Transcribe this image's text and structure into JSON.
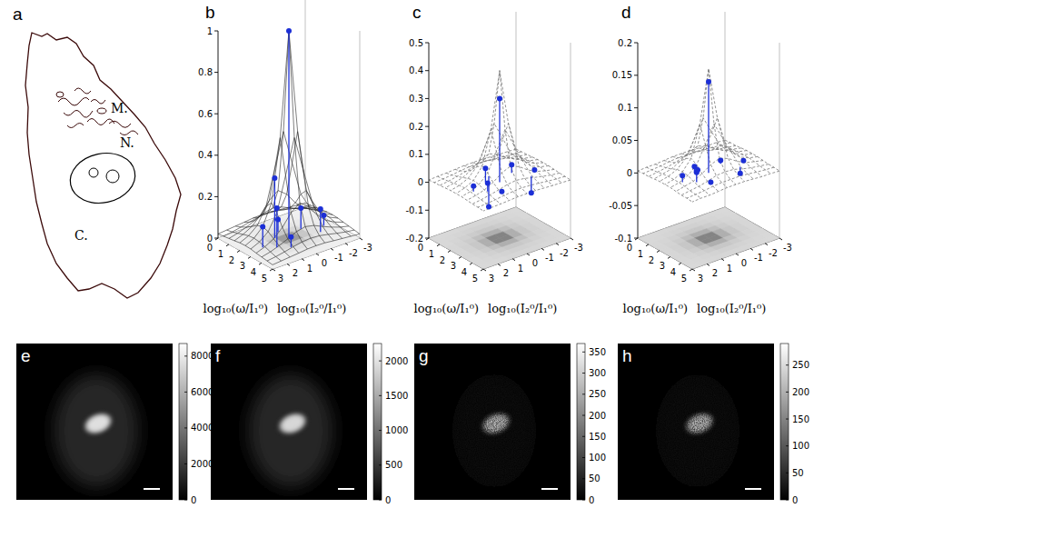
{
  "chart_data": [
    {
      "panel": "b",
      "type": "surface3d",
      "x_label": "log₁₀(ω/I₁⁰)",
      "y_label": "log₁₀(I₂⁰/I₁⁰)",
      "xlim": [
        0,
        5
      ],
      "xticks": [
        0,
        1,
        2,
        3,
        4,
        5
      ],
      "ylim": [
        -3,
        3
      ],
      "yticks": [
        3,
        2,
        1,
        0,
        -1,
        -2,
        -3
      ],
      "zlim": [
        0,
        1
      ],
      "zticks": [
        0,
        0.2,
        0.4,
        0.6,
        0.8,
        1
      ],
      "color": "#1c2fd6",
      "line_style": "solid",
      "surface": {
        "x": [
          0,
          0.5,
          1,
          1.5,
          2,
          2.5,
          3,
          3.5,
          4,
          4.5,
          5
        ],
        "y": [
          -3,
          -2.4,
          -1.8,
          -1.2,
          -0.6,
          0,
          0.6,
          1.2,
          1.8,
          2.4,
          3
        ],
        "z": [
          [
            0.02,
            0.024,
            0.028,
            0.032,
            0.037,
            0.038,
            0.037,
            0.032,
            0.028,
            0.024,
            0.02
          ],
          [
            0.024,
            0.03,
            0.038,
            0.048,
            0.056,
            0.059,
            0.056,
            0.048,
            0.038,
            0.03,
            0.024
          ],
          [
            0.028,
            0.038,
            0.053,
            0.071,
            0.091,
            0.1,
            0.091,
            0.071,
            0.053,
            0.038,
            0.028
          ],
          [
            0.032,
            0.048,
            0.071,
            0.111,
            0.167,
            0.2,
            0.167,
            0.111,
            0.071,
            0.048,
            0.032
          ],
          [
            0.037,
            0.056,
            0.091,
            0.167,
            0.333,
            0.5,
            0.333,
            0.167,
            0.091,
            0.056,
            0.037
          ],
          [
            0.038,
            0.059,
            0.1,
            0.2,
            0.5,
            1,
            0.5,
            0.2,
            0.1,
            0.059,
            0.038
          ],
          [
            0.037,
            0.056,
            0.091,
            0.167,
            0.333,
            0.5,
            0.333,
            0.167,
            0.091,
            0.056,
            0.037
          ],
          [
            0.032,
            0.048,
            0.071,
            0.111,
            0.167,
            0.2,
            0.167,
            0.111,
            0.071,
            0.048,
            0.032
          ],
          [
            0.028,
            0.038,
            0.053,
            0.071,
            0.091,
            0.1,
            0.091,
            0.071,
            0.053,
            0.038,
            0.028
          ],
          [
            0.024,
            0.03,
            0.038,
            0.048,
            0.056,
            0.059,
            0.056,
            0.048,
            0.038,
            0.03,
            0.024
          ],
          [
            0.02,
            0.024,
            0.028,
            0.032,
            0.037,
            0.038,
            0.037,
            0.032,
            0.028,
            0.024,
            0.02
          ]
        ]
      },
      "points": {
        "x": [
          2.5,
          2,
          3,
          2,
          3,
          1.5,
          3.5,
          2.5,
          2.5
        ],
        "y": [
          0,
          0.6,
          1.2,
          -1.2,
          -1.8,
          0,
          0.6,
          1.8,
          -2.4
        ],
        "values": [
          1,
          0.29,
          0.19,
          0.1,
          0.11,
          0.06,
          0.05,
          0.1,
          0.05
        ]
      }
    },
    {
      "panel": "c",
      "type": "surface3d",
      "x_label": "log₁₀(ω/I₁⁰)",
      "y_label": "log₁₀(I₂⁰/I₁⁰)",
      "xlim": [
        0,
        5
      ],
      "xticks": [
        0,
        1,
        2,
        3,
        4,
        5
      ],
      "ylim": [
        -3,
        3
      ],
      "yticks": [
        3,
        2,
        1,
        0,
        -1,
        -2,
        -3
      ],
      "zlim": [
        -0.2,
        0.5
      ],
      "zticks": [
        -0.2,
        -0.1,
        0,
        0.1,
        0.2,
        0.3,
        0.4,
        0.5
      ],
      "color": "#1c2fd6",
      "line_style": "dashed",
      "surface": {
        "x": [
          0,
          0.5,
          1,
          1.5,
          2,
          2.5,
          3,
          3.5,
          4,
          4.5,
          5
        ],
        "y": [
          -3,
          -2.4,
          -1.8,
          -1.2,
          -0.6,
          0,
          0.6,
          1.2,
          1.8,
          2.4,
          3
        ],
        "z": [
          [
            0.008,
            0.01,
            0.011,
            0.013,
            0.015,
            0.015,
            0.015,
            0.013,
            0.011,
            0.01,
            0.008
          ],
          [
            0.01,
            0.012,
            0.015,
            0.019,
            0.022,
            0.024,
            0.022,
            0.019,
            0.015,
            0.012,
            0.01
          ],
          [
            0.011,
            0.015,
            0.021,
            0.028,
            0.036,
            0.04,
            0.036,
            0.028,
            0.021,
            0.015,
            0.011
          ],
          [
            0.013,
            0.019,
            0.028,
            0.044,
            0.067,
            0.08,
            0.067,
            0.044,
            0.028,
            0.019,
            0.013
          ],
          [
            0.015,
            0.022,
            0.036,
            0.067,
            0.133,
            0.2,
            0.133,
            0.067,
            0.036,
            0.022,
            0.015
          ],
          [
            0.015,
            0.024,
            0.04,
            0.08,
            0.2,
            0.4,
            0.2,
            0.08,
            0.04,
            0.024,
            0.015
          ],
          [
            0.015,
            0.022,
            0.036,
            0.067,
            0.133,
            0.2,
            0.133,
            0.067,
            0.036,
            0.022,
            0.015
          ],
          [
            0.013,
            0.019,
            0.028,
            0.044,
            0.067,
            0.08,
            0.067,
            0.044,
            0.028,
            0.019,
            0.013
          ],
          [
            0.011,
            0.015,
            0.021,
            0.028,
            0.036,
            0.04,
            0.036,
            0.028,
            0.021,
            0.015,
            0.011
          ],
          [
            0.01,
            0.012,
            0.015,
            0.019,
            0.022,
            0.024,
            0.022,
            0.019,
            0.015,
            0.012,
            0.01
          ],
          [
            0.008,
            0.01,
            0.011,
            0.013,
            0.015,
            0.015,
            0.015,
            0.013,
            0.011,
            0.01,
            0.008
          ]
        ]
      },
      "points": {
        "x": [
          2.5,
          2,
          3,
          2,
          3,
          1.5,
          3.5,
          2.5,
          2.5
        ],
        "y": [
          0,
          0.6,
          1.2,
          -1.2,
          -1.8,
          0,
          0.6,
          1.8,
          -2.4
        ],
        "values": [
          0.3,
          0.05,
          0.03,
          0.03,
          -0.06,
          -0.11,
          0,
          0.02,
          0
        ]
      }
    },
    {
      "panel": "d",
      "type": "surface3d",
      "x_label": "log₁₀(ω/I₁⁰)",
      "y_label": "log₁₀(I₂⁰/I₁⁰)",
      "xlim": [
        0,
        5
      ],
      "xticks": [
        0,
        1,
        2,
        3,
        4,
        5
      ],
      "ylim": [
        -3,
        3
      ],
      "yticks": [
        3,
        2,
        1,
        0,
        -1,
        -2,
        -3
      ],
      "zlim": [
        -0.1,
        0.2
      ],
      "zticks": [
        -0.1,
        -0.05,
        0,
        0.05,
        0.1,
        0.15,
        0.2
      ],
      "color": "#1c2fd6",
      "line_style": "dashed",
      "surface": {
        "x": [
          0,
          0.5,
          1,
          1.5,
          2,
          2.5,
          3,
          3.5,
          4,
          4.5,
          5
        ],
        "y": [
          -3,
          -2.4,
          -1.8,
          -1.2,
          -0.6,
          0,
          0.6,
          1.2,
          1.8,
          2.4,
          3
        ],
        "z": [
          [
            0.003,
            0.004,
            0.004,
            0.005,
            0.006,
            0.006,
            0.006,
            0.005,
            0.004,
            0.004,
            0.003
          ],
          [
            0.004,
            0.005,
            0.006,
            0.008,
            0.009,
            0.009,
            0.009,
            0.008,
            0.006,
            0.005,
            0.004
          ],
          [
            0.004,
            0.006,
            0.008,
            0.011,
            0.015,
            0.016,
            0.015,
            0.011,
            0.008,
            0.006,
            0.004
          ],
          [
            0.005,
            0.008,
            0.011,
            0.018,
            0.027,
            0.032,
            0.027,
            0.018,
            0.011,
            0.008,
            0.005
          ],
          [
            0.006,
            0.009,
            0.015,
            0.027,
            0.053,
            0.08,
            0.053,
            0.027,
            0.015,
            0.009,
            0.006
          ],
          [
            0.006,
            0.009,
            0.016,
            0.032,
            0.08,
            0.16,
            0.08,
            0.032,
            0.016,
            0.009,
            0.006
          ],
          [
            0.006,
            0.009,
            0.015,
            0.027,
            0.053,
            0.08,
            0.053,
            0.027,
            0.015,
            0.009,
            0.006
          ],
          [
            0.005,
            0.008,
            0.011,
            0.018,
            0.027,
            0.032,
            0.027,
            0.018,
            0.011,
            0.008,
            0.005
          ],
          [
            0.004,
            0.006,
            0.008,
            0.011,
            0.015,
            0.016,
            0.015,
            0.011,
            0.008,
            0.006,
            0.004
          ],
          [
            0.004,
            0.005,
            0.006,
            0.008,
            0.009,
            0.009,
            0.009,
            0.008,
            0.006,
            0.005,
            0.004
          ],
          [
            0.003,
            0.004,
            0.004,
            0.005,
            0.006,
            0.006,
            0.006,
            0.005,
            0.004,
            0.004,
            0.003
          ]
        ]
      },
      "points": {
        "x": [
          2.5,
          2,
          3,
          2,
          3,
          1.5,
          3.5,
          2.5,
          2.5
        ],
        "y": [
          0,
          0.6,
          1.2,
          -1.2,
          -1.8,
          0,
          0.6,
          1.8,
          -2.4
        ],
        "values": [
          0.14,
          0.01,
          0.015,
          0.005,
          -0.01,
          -0.005,
          0,
          0.01,
          0
        ]
      }
    },
    {
      "panel": "e",
      "type": "image",
      "colorbar_range": [
        0,
        8700
      ],
      "colorbar_ticks": [
        0,
        2000,
        4000,
        6000,
        8000
      ],
      "nucleus_intensity": 7600,
      "cell_intensity": 1300
    },
    {
      "panel": "f",
      "type": "image",
      "colorbar_range": [
        0,
        2250
      ],
      "colorbar_ticks": [
        0,
        500,
        1000,
        1500,
        2000
      ],
      "nucleus_intensity": 1900,
      "cell_intensity": 350
    },
    {
      "panel": "g",
      "type": "image",
      "colorbar_range": [
        0,
        370
      ],
      "colorbar_ticks": [
        0,
        50,
        100,
        150,
        200,
        250,
        300,
        350
      ],
      "nucleus_intensity": 270,
      "cell_intensity": 20
    },
    {
      "panel": "h",
      "type": "image",
      "colorbar_range": [
        0,
        290
      ],
      "colorbar_ticks": [
        0,
        50,
        100,
        150,
        200,
        250
      ],
      "nucleus_intensity": 210,
      "cell_intensity": 15
    }
  ],
  "diagram": {
    "panel": "a",
    "labels": [
      "M.",
      "N.",
      "C."
    ]
  }
}
